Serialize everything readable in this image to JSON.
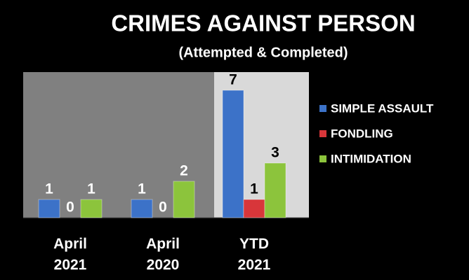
{
  "chart_data": {
    "type": "bar",
    "title": "CRIMES AGAINST PERSON",
    "subtitle": "(Attempted & Completed)",
    "categories": [
      "April 2021",
      "April 2020",
      "YTD 2021"
    ],
    "series": [
      {
        "name": "SIMPLE ASSAULT",
        "color": "#3c72c8",
        "values": [
          1,
          1,
          7
        ]
      },
      {
        "name": "FONDLING",
        "color": "#d8363a",
        "values": [
          0,
          0,
          1
        ]
      },
      {
        "name": "INTIMIDATION",
        "color": "#8cc43c",
        "values": [
          1,
          2,
          3
        ]
      }
    ],
    "legend": "right"
  }
}
